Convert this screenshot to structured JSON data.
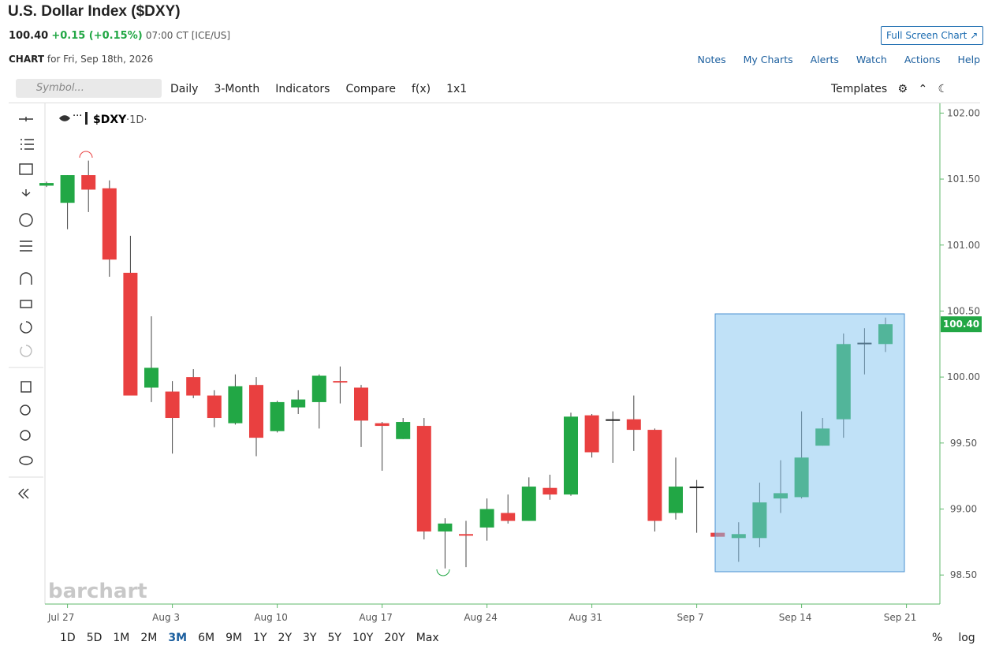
{
  "header": {
    "title": "U.S. Dollar Index ($DXY)",
    "price": "100.40",
    "change": "+0.15 (+0.15%)",
    "time": "07:00 CT [ICE/US]",
    "full_screen": "Full Screen Chart",
    "chart_label": "CHART",
    "chart_date": "for Fri, Sep 18th, 2026",
    "links": [
      "Notes",
      "My Charts",
      "Alerts",
      "Watch",
      "Actions",
      "Help"
    ]
  },
  "toolbar": {
    "symbol_placeholder": "Symbol...",
    "items": [
      "Daily",
      "3-Month",
      "Indicators",
      "Compare",
      "f(x)",
      "1x1"
    ],
    "templates": "Templates"
  },
  "legend": {
    "symbol": "$DXY",
    "interval": "·1D·"
  },
  "watermark": "barchart",
  "periods": [
    "1D",
    "5D",
    "1M",
    "2M",
    "3M",
    "6M",
    "9M",
    "1Y",
    "2Y",
    "3Y",
    "5Y",
    "10Y",
    "20Y",
    "Max"
  ],
  "scale_options": [
    "%",
    "log"
  ],
  "chart_data": {
    "type": "candlestick",
    "categories": [
      null,
      "Jul 27",
      null,
      null,
      null,
      null,
      "Aug 3",
      null,
      null,
      null,
      null,
      "Aug 10",
      null,
      null,
      null,
      null,
      "Aug 17",
      null,
      null,
      null,
      null,
      "Aug 24",
      null,
      null,
      null,
      null,
      "Aug 31",
      null,
      null,
      null,
      null,
      "Sep 7",
      null,
      null,
      null,
      null,
      "Sep 14",
      null,
      null,
      null,
      null,
      "Sep 21"
    ],
    "open": [
      101.45,
      101.32,
      101.53,
      101.43,
      100.79,
      99.92,
      99.89,
      100.0,
      99.86,
      99.65,
      99.94,
      99.59,
      99.77,
      99.81,
      99.97,
      99.92,
      99.65,
      99.53,
      99.63,
      98.83,
      98.81,
      98.86,
      98.97,
      98.91,
      99.16,
      99.11,
      99.71,
      99.68,
      99.68,
      99.6,
      98.97,
      99.17,
      98.82,
      98.78,
      98.78,
      99.08,
      99.09,
      99.48,
      99.68,
      100.26,
      100.25,
      null
    ],
    "high": [
      101.48,
      101.53,
      101.64,
      101.49,
      101.07,
      100.46,
      99.97,
      100.06,
      99.9,
      100.02,
      100.0,
      99.82,
      99.9,
      100.02,
      100.08,
      99.94,
      99.66,
      99.69,
      99.69,
      98.93,
      98.91,
      99.08,
      99.11,
      99.24,
      99.26,
      99.73,
      99.72,
      99.74,
      99.86,
      99.61,
      99.39,
      99.22,
      98.82,
      98.9,
      99.2,
      99.37,
      99.74,
      99.69,
      100.33,
      100.37,
      100.45,
      null
    ],
    "low": [
      101.44,
      101.12,
      101.25,
      100.76,
      99.86,
      99.81,
      99.42,
      99.84,
      99.62,
      99.64,
      99.4,
      99.58,
      99.72,
      99.61,
      99.8,
      99.47,
      99.29,
      99.53,
      98.77,
      98.55,
      98.56,
      98.76,
      98.89,
      98.91,
      99.07,
      99.1,
      99.39,
      99.35,
      99.44,
      98.83,
      98.92,
      98.82,
      98.79,
      98.6,
      98.71,
      98.97,
      99.08,
      99.48,
      99.54,
      100.02,
      100.19,
      null
    ],
    "close": [
      101.47,
      101.53,
      101.42,
      100.89,
      99.86,
      100.07,
      99.69,
      99.86,
      99.69,
      99.93,
      99.54,
      99.81,
      99.83,
      100.01,
      99.96,
      99.67,
      99.63,
      99.66,
      98.83,
      98.89,
      98.8,
      99.0,
      98.91,
      99.17,
      99.11,
      99.7,
      99.43,
      99.68,
      99.6,
      98.91,
      99.17,
      99.17,
      98.79,
      98.81,
      99.05,
      99.12,
      99.39,
      99.61,
      100.25,
      100.26,
      100.4,
      null
    ],
    "up_color": "#22a745",
    "down_color": "#e94040",
    "flat_color": "#222222",
    "ylim": [
      98.28,
      102.08
    ],
    "yticks": [
      {
        "value": 98.5,
        "label": "98.50"
      },
      {
        "value": 99,
        "label": "99.00"
      },
      {
        "value": 99.5,
        "label": "99.50"
      },
      {
        "value": 100,
        "label": "100.00"
      },
      {
        "value": 100.5,
        "label": "100.50"
      },
      {
        "value": 101,
        "label": "101.00"
      },
      {
        "value": 101.5,
        "label": "101.50"
      },
      {
        "value": 102,
        "label": "102.00"
      }
    ]
  }
}
